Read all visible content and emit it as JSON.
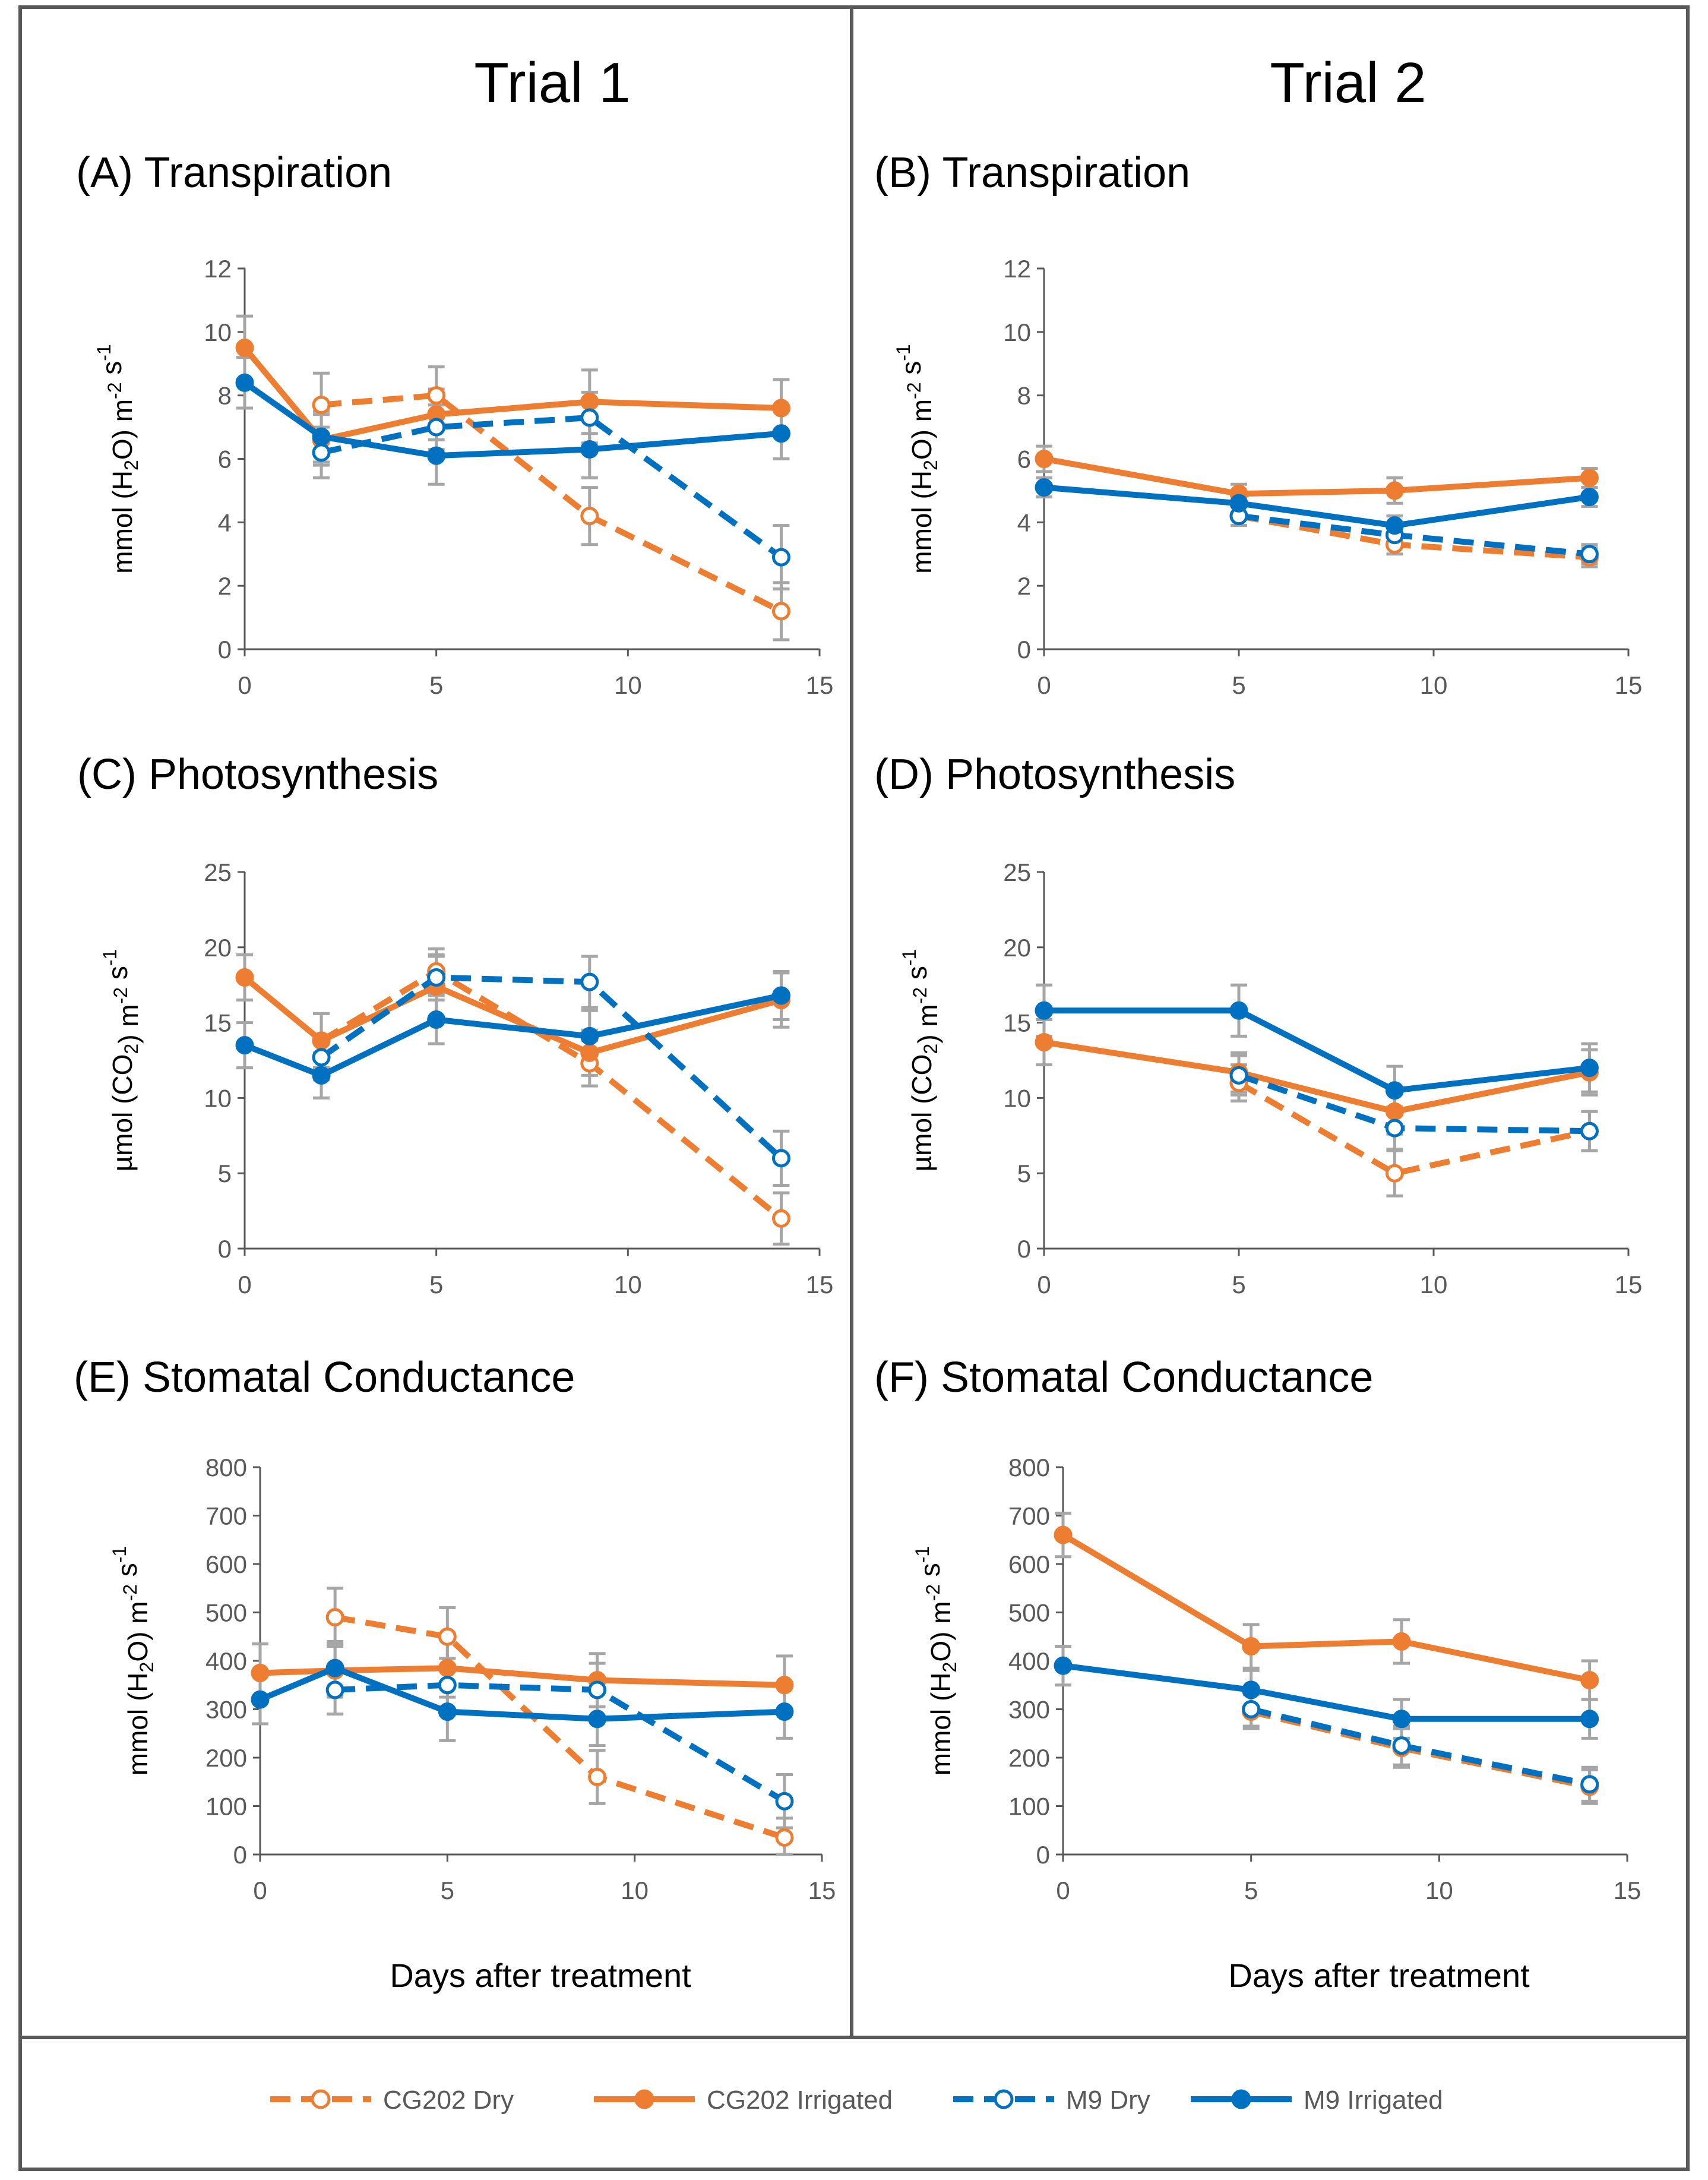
{
  "figure": {
    "xlabel_common": "Days after treatment",
    "trials": [
      "Trial 1",
      "Trial 2"
    ]
  },
  "legend": [
    {
      "name": "CG202 Dry",
      "color": "#ED7D31",
      "dashed": true,
      "filled": false
    },
    {
      "name": "CG202 Irrigated",
      "color": "#ED7D31",
      "dashed": false,
      "filled": true
    },
    {
      "name": "M9 Dry",
      "color": "#0070C0",
      "dashed": true,
      "filled": false
    },
    {
      "name": "M9 Irrigated",
      "color": "#0070C0",
      "dashed": false,
      "filled": true
    }
  ],
  "chart_data": [
    {
      "id": "A",
      "title": "(A) Transpiration",
      "type": "line",
      "ylabel": "mmol (H2O) m-2 s-1",
      "ylim": [
        0,
        12
      ],
      "yticks": [
        0,
        2,
        4,
        6,
        8,
        10,
        12
      ],
      "xlim": [
        0,
        15
      ],
      "xticks": [
        0,
        5,
        10,
        15
      ],
      "xlabel": "",
      "series": [
        {
          "name": "CG202 Dry",
          "x": [
            2,
            5,
            9,
            14
          ],
          "y": [
            7.7,
            8.0,
            4.2,
            1.2
          ],
          "err": [
            1.0,
            0.9,
            0.9,
            0.9
          ]
        },
        {
          "name": "CG202 Irrigated",
          "x": [
            0,
            2,
            5,
            9,
            14
          ],
          "y": [
            9.5,
            6.6,
            7.4,
            7.8,
            7.6
          ],
          "err": [
            1.0,
            0.8,
            0.8,
            1.0,
            0.9
          ]
        },
        {
          "name": "M9 Dry",
          "x": [
            2,
            5,
            9,
            14
          ],
          "y": [
            6.2,
            7.0,
            7.3,
            2.9
          ],
          "err": [
            0.8,
            0.7,
            0.8,
            1.0
          ]
        },
        {
          "name": "M9 Irrigated",
          "x": [
            0,
            2,
            5,
            9,
            14
          ],
          "y": [
            8.4,
            6.7,
            6.1,
            6.3,
            6.8
          ],
          "err": [
            0.8,
            0.8,
            0.9,
            0.9,
            0.8
          ]
        }
      ]
    },
    {
      "id": "B",
      "title": "(B) Transpiration",
      "type": "line",
      "ylabel": "mmol (H2O) m-2 s-1",
      "ylim": [
        0,
        12
      ],
      "yticks": [
        0,
        2,
        4,
        6,
        8,
        10,
        12
      ],
      "xlim": [
        0,
        15
      ],
      "xticks": [
        0,
        5,
        10,
        15
      ],
      "xlabel": "",
      "series": [
        {
          "name": "CG202 Dry",
          "x": [
            5,
            9,
            14
          ],
          "y": [
            4.2,
            3.3,
            2.9
          ],
          "err": [
            0.3,
            0.3,
            0.3
          ]
        },
        {
          "name": "CG202 Irrigated",
          "x": [
            0,
            5,
            9,
            14
          ],
          "y": [
            6.0,
            4.9,
            5.0,
            5.4
          ],
          "err": [
            0.4,
            0.3,
            0.4,
            0.3
          ]
        },
        {
          "name": "M9 Dry",
          "x": [
            5,
            9,
            14
          ],
          "y": [
            4.2,
            3.6,
            3.0
          ],
          "err": [
            0.3,
            0.3,
            0.3
          ]
        },
        {
          "name": "M9 Irrigated",
          "x": [
            0,
            5,
            9,
            14
          ],
          "y": [
            5.1,
            4.6,
            3.9,
            4.8
          ],
          "err": [
            0.3,
            0.3,
            0.3,
            0.3
          ]
        }
      ]
    },
    {
      "id": "C",
      "title": "(C) Photosynthesis",
      "type": "line",
      "ylabel": "µmol (CO2) m-2 s-1",
      "ylim": [
        0,
        25
      ],
      "yticks": [
        0,
        5,
        10,
        15,
        20,
        25
      ],
      "xlim": [
        0,
        15
      ],
      "xticks": [
        0,
        5,
        10,
        15
      ],
      "xlabel": "",
      "series": [
        {
          "name": "CG202 Dry",
          "x": [
            2,
            5,
            9,
            14
          ],
          "y": [
            13.8,
            18.4,
            12.3,
            2.0
          ],
          "err": [
            1.8,
            1.5,
            1.5,
            1.7
          ]
        },
        {
          "name": "CG202 Irrigated",
          "x": [
            0,
            2,
            5,
            9,
            14
          ],
          "y": [
            18.0,
            13.8,
            17.4,
            13.0,
            16.5
          ],
          "err": [
            1.5,
            1.8,
            2.0,
            1.5,
            1.8
          ]
        },
        {
          "name": "M9 Dry",
          "x": [
            2,
            5,
            9,
            14
          ],
          "y": [
            12.7,
            18.0,
            17.7,
            6.0
          ],
          "err": [
            1.5,
            1.5,
            1.7,
            1.8
          ]
        },
        {
          "name": "M9 Irrigated",
          "x": [
            0,
            2,
            5,
            9,
            14
          ],
          "y": [
            13.5,
            11.5,
            15.2,
            14.1,
            16.8
          ],
          "err": [
            1.5,
            1.5,
            1.6,
            1.7,
            1.6
          ]
        }
      ]
    },
    {
      "id": "D",
      "title": "(D) Photosynthesis",
      "type": "line",
      "ylabel": "µmol (CO2) m-2 s-1",
      "ylim": [
        0,
        25
      ],
      "yticks": [
        0,
        5,
        10,
        15,
        20,
        25
      ],
      "xlim": [
        0,
        15
      ],
      "xticks": [
        0,
        5,
        10,
        15
      ],
      "xlabel": "",
      "series": [
        {
          "name": "CG202 Dry",
          "x": [
            5,
            9,
            14
          ],
          "y": [
            11.0,
            5.0,
            7.8
          ],
          "err": [
            1.2,
            1.5,
            1.3
          ]
        },
        {
          "name": "CG202 Irrigated",
          "x": [
            0,
            5,
            9,
            14
          ],
          "y": [
            13.7,
            11.7,
            9.1,
            11.7
          ],
          "err": [
            1.5,
            1.3,
            1.5,
            1.5
          ]
        },
        {
          "name": "M9 Dry",
          "x": [
            5,
            9,
            14
          ],
          "y": [
            11.5,
            8.0,
            7.8
          ],
          "err": [
            1.3,
            1.4,
            1.3
          ]
        },
        {
          "name": "M9 Irrigated",
          "x": [
            0,
            5,
            9,
            14
          ],
          "y": [
            15.8,
            15.8,
            10.5,
            12.0
          ],
          "err": [
            1.7,
            1.7,
            1.6,
            1.6
          ]
        }
      ]
    },
    {
      "id": "E",
      "title": "(E) Stomatal Conductance",
      "type": "line",
      "ylabel": "mmol (H2O) m-2 s-1",
      "ylim": [
        0,
        800
      ],
      "yticks": [
        0,
        100,
        200,
        300,
        400,
        500,
        600,
        700,
        800
      ],
      "xlim": [
        0,
        15
      ],
      "xticks": [
        0,
        5,
        10,
        15
      ],
      "xlabel": "Days after treatment",
      "series": [
        {
          "name": "CG202 Dry",
          "x": [
            2,
            5,
            9,
            14
          ],
          "y": [
            490,
            450,
            160,
            35
          ],
          "err": [
            60,
            60,
            55,
            40
          ]
        },
        {
          "name": "CG202 Irrigated",
          "x": [
            0,
            2,
            5,
            9,
            14
          ],
          "y": [
            375,
            380,
            385,
            360,
            350
          ],
          "err": [
            60,
            55,
            60,
            55,
            60
          ]
        },
        {
          "name": "M9 Dry",
          "x": [
            2,
            5,
            9,
            14
          ],
          "y": [
            340,
            350,
            340,
            110
          ],
          "err": [
            50,
            55,
            55,
            55
          ]
        },
        {
          "name": "M9 Irrigated",
          "x": [
            0,
            2,
            5,
            9,
            14
          ],
          "y": [
            320,
            385,
            295,
            280,
            295
          ],
          "err": [
            50,
            55,
            60,
            55,
            55
          ]
        }
      ]
    },
    {
      "id": "F",
      "title": "(F) Stomatal Conductance",
      "type": "line",
      "ylabel": "mmol (H2O) m-2 s-1",
      "ylim": [
        0,
        800
      ],
      "yticks": [
        0,
        100,
        200,
        300,
        400,
        500,
        600,
        700,
        800
      ],
      "xlim": [
        0,
        15
      ],
      "xticks": [
        0,
        5,
        10,
        15
      ],
      "xlabel": "Days after treatment",
      "series": [
        {
          "name": "CG202 Dry",
          "x": [
            5,
            9,
            14
          ],
          "y": [
            295,
            220,
            140
          ],
          "err": [
            35,
            40,
            35
          ]
        },
        {
          "name": "CG202 Irrigated",
          "x": [
            0,
            5,
            9,
            14
          ],
          "y": [
            660,
            430,
            440,
            360
          ],
          "err": [
            45,
            45,
            45,
            40
          ]
        },
        {
          "name": "M9 Dry",
          "x": [
            5,
            9,
            14
          ],
          "y": [
            300,
            225,
            145
          ],
          "err": [
            35,
            40,
            35
          ]
        },
        {
          "name": "M9 Irrigated",
          "x": [
            0,
            5,
            9,
            14
          ],
          "y": [
            390,
            340,
            280,
            280
          ],
          "err": [
            40,
            40,
            40,
            40
          ]
        }
      ]
    }
  ]
}
